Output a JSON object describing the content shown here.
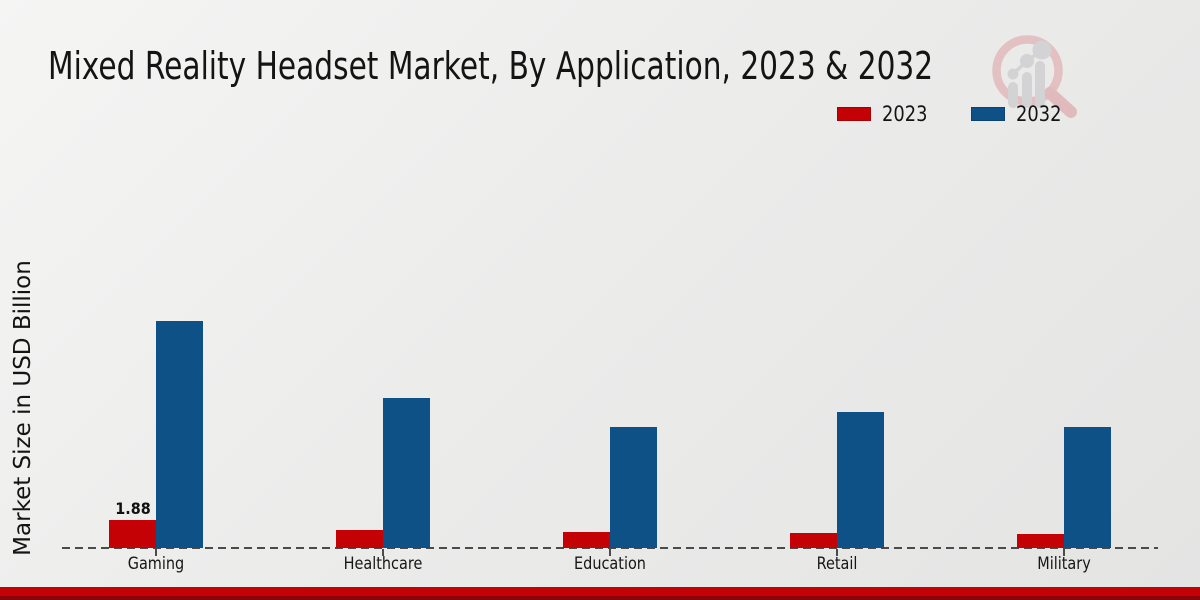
{
  "title": "Mixed Reality Headset Market, By Application, 2023 & 2032",
  "ylabel": "Market Size in USD Billion",
  "legend": {
    "items": [
      {
        "label": "2023",
        "color": "#c40104"
      },
      {
        "label": "2032",
        "color": "#0e5187"
      }
    ]
  },
  "colors": {
    "series_2023_red": "#c40104",
    "series_2032_blue": "#0e5187",
    "footer_red": "#c40104",
    "footer_dark_red": "#8c0407",
    "baseline_gray": "#4b4b4b",
    "background_light": "#f5f5f4",
    "background_dark": "#e4e4e3",
    "watermark_pink": "#e3c0c2",
    "watermark_gray": "#d3d3d5"
  },
  "chart_data": {
    "type": "bar",
    "title": "Mixed Reality Headset Market, By Application, 2023 & 2032",
    "xlabel": "",
    "ylabel": "Market Size in USD Billion",
    "units": "USD Billion",
    "categories": [
      "Gaming",
      "Healthcare",
      "Education",
      "Retail",
      "Military"
    ],
    "series": [
      {
        "name": "2023",
        "color": "#c40104",
        "values": [
          1.88,
          1.2,
          1.05,
          1.0,
          0.95
        ]
      },
      {
        "name": "2032",
        "color": "#0e5187",
        "values": [
          15.1,
          10.0,
          8.05,
          9.05,
          8.05
        ]
      }
    ],
    "data_labels": [
      {
        "series": "2023",
        "category": "Gaming",
        "text": "1.88"
      }
    ],
    "ylim": [
      0,
      16.5
    ],
    "grid": false,
    "axis_ticks_visible": false,
    "legend_position": "top-right"
  },
  "watermark": {
    "icon": "magnifier-bar-chart-logo"
  }
}
